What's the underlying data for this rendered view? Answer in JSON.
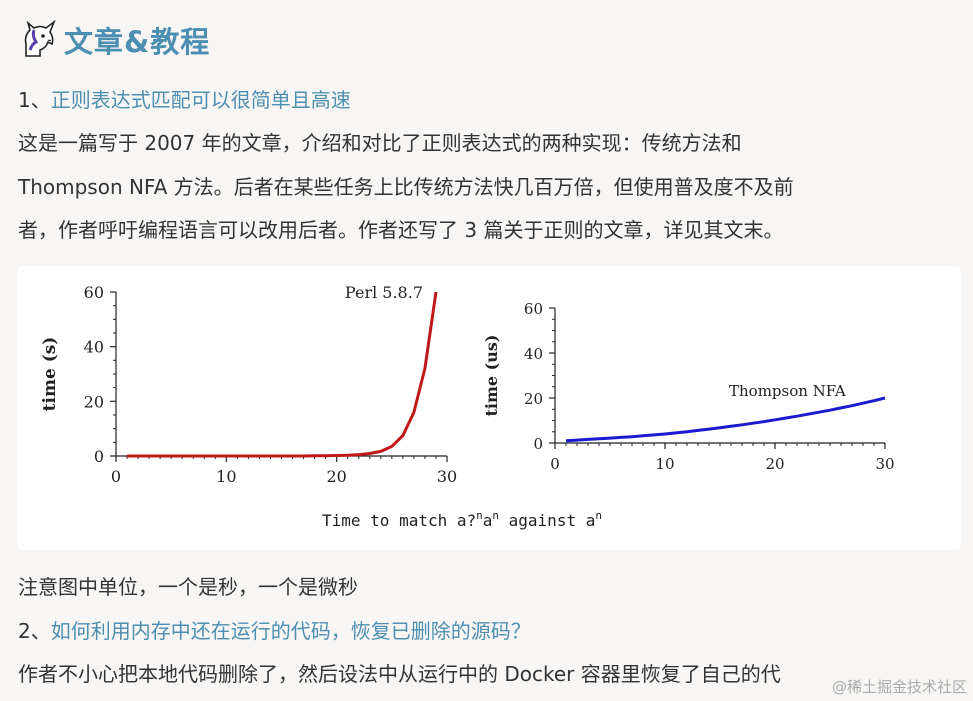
{
  "section": {
    "title": "文章&教程",
    "icon": "unicorn-icon"
  },
  "item1": {
    "number": "1、",
    "link": "正则表达式匹配可以很简单且高速",
    "para_line1": "这是一篇写于 2007 年的文章，介绍和对比了正则表达式的两种实现：传统方法和",
    "para_line2": "Thompson NFA 方法。后者在某些任务上比传统方法快几百万倍，但使用普及度不及前",
    "para_line3": "者，作者呼吁编程语言可以改用后者。作者还写了 3 篇关于正则的文章，详见其文末。"
  },
  "figure": {
    "caption_prefix": "Time to match a?",
    "caption_sup1": "n",
    "caption_mid": "a",
    "caption_sup2": "n",
    "caption_mid2": " against a",
    "caption_sup3": "n"
  },
  "chart_data": [
    {
      "type": "line",
      "ylabel": "time (s)",
      "xlim": [
        0,
        30
      ],
      "ylim": [
        0,
        60
      ],
      "xticks": [
        0,
        10,
        20,
        30
      ],
      "yticks": [
        0,
        20,
        40,
        60
      ],
      "series": [
        {
          "name": "Perl 5.8.7",
          "color": "#c0191b",
          "x": [
            1,
            2,
            3,
            4,
            5,
            6,
            7,
            8,
            9,
            10,
            11,
            12,
            13,
            14,
            15,
            16,
            17,
            18,
            19,
            20,
            21,
            22,
            23,
            24,
            25,
            26,
            27,
            28,
            29
          ],
          "y": [
            0,
            0,
            0,
            0,
            0,
            0,
            0,
            0,
            0,
            0,
            0,
            0,
            0,
            0,
            0,
            0,
            0,
            0.1,
            0.1,
            0.2,
            0.3,
            0.5,
            0.9,
            1.7,
            3.5,
            7.5,
            16,
            32,
            60
          ]
        }
      ]
    },
    {
      "type": "line",
      "ylabel": "time (us)",
      "xlim": [
        0,
        30
      ],
      "ylim": [
        0,
        60
      ],
      "xticks": [
        0,
        10,
        20,
        30
      ],
      "yticks": [
        0,
        20,
        40,
        60
      ],
      "series": [
        {
          "name": "Thompson NFA",
          "color": "#1a1ad0",
          "x": [
            1,
            2,
            3,
            4,
            5,
            6,
            7,
            8,
            9,
            10,
            11,
            12,
            13,
            14,
            15,
            16,
            17,
            18,
            19,
            20,
            21,
            22,
            23,
            24,
            25,
            26,
            27,
            28,
            29,
            30
          ],
          "y": [
            1,
            1.3,
            1.6,
            1.9,
            2.2,
            2.5,
            2.8,
            3.2,
            3.6,
            4,
            4.5,
            5,
            5.6,
            6.2,
            6.8,
            7.4,
            8.1,
            8.8,
            9.5,
            10.3,
            11.1,
            11.9,
            12.8,
            13.7,
            14.6,
            15.6,
            16.6,
            17.7,
            18.8,
            20
          ]
        }
      ]
    }
  ],
  "note": "注意图中单位，一个是秒，一个是微秒",
  "item2": {
    "number": "2、",
    "link": "如何利用内存中还在运行的代码，恢复已删除的源码？",
    "para_line1": "作者不小心把本地代码删除了，然后设法中从运行中的 Docker 容器里恢复了自己的代"
  },
  "watermark": "@稀土掘金技术社区"
}
